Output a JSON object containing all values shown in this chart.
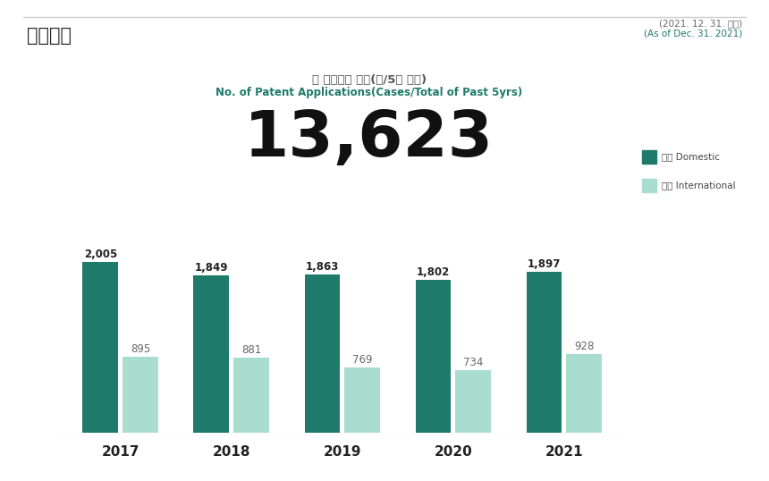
{
  "title_korean": "특허출원",
  "date_korean": "(2021. 12. 31. 기준)",
  "date_english": "(As of Dec. 31. 2021)",
  "subtitle_korean": "총 특허출원 건수(건/5년 누적)",
  "subtitle_english": "No. of Patent Applications(Cases/Total of Past 5yrs)",
  "total_value": "13,623",
  "years": [
    "2017",
    "2018",
    "2019",
    "2020",
    "2021"
  ],
  "domestic_values": [
    2005,
    1849,
    1863,
    1802,
    1897
  ],
  "international_values": [
    895,
    881,
    769,
    734,
    928
  ],
  "domestic_color": "#1e7a6a",
  "international_color": "#a8ddd0",
  "background_color": "#ffffff",
  "separator_color": "#cccccc",
  "legend_domestic_korean": "국내",
  "legend_domestic_english": "Domestic",
  "legend_international_korean": "국제",
  "legend_international_english": "International",
  "label_color_domestic": "#222222",
  "label_color_international": "#666666",
  "year_label_color": "#222222",
  "title_color": "#222222",
  "subtitle_korean_color": "#555555",
  "subtitle_english_color": "#1e7a6a",
  "date_korean_color": "#666666",
  "date_english_color": "#1e7a6a",
  "total_color": "#111111",
  "ylim": [
    0,
    2600
  ]
}
